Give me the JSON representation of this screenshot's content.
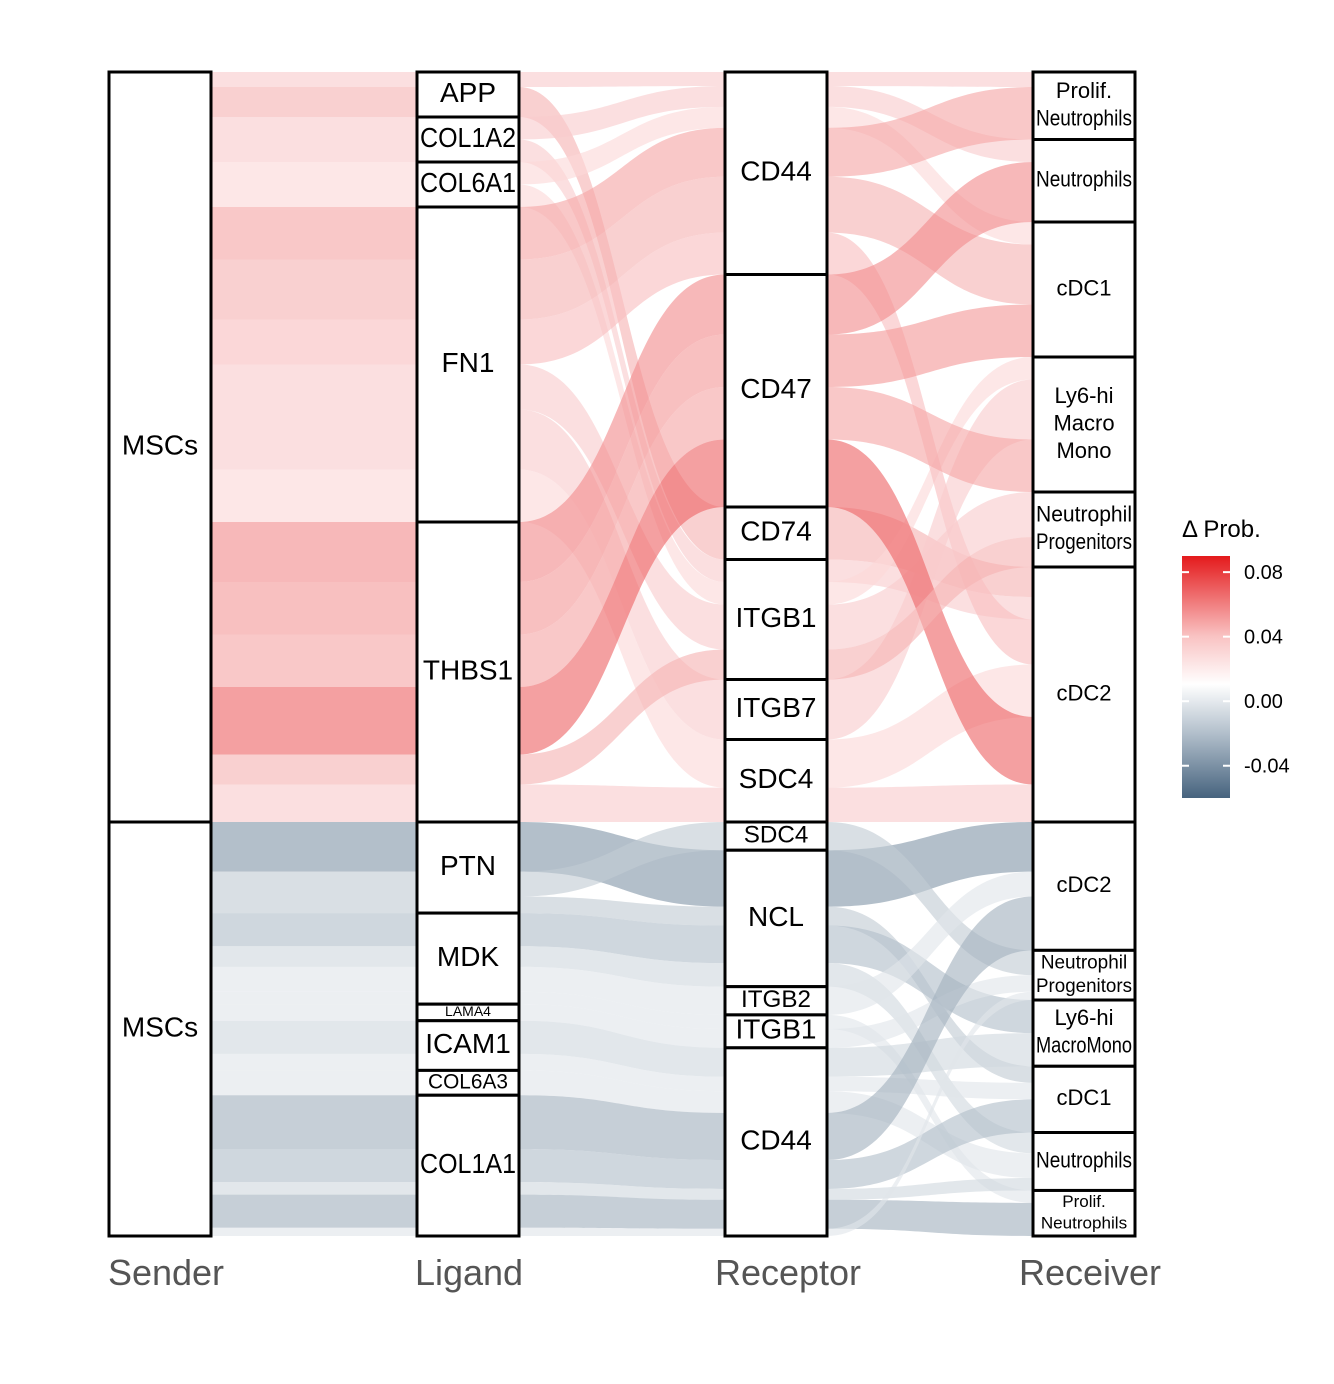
{
  "chart_data": {
    "type": "alluvial",
    "axes": [
      "Sender",
      "Ligand",
      "Receptor",
      "Receiver"
    ],
    "legend": {
      "title": "Δ Prob.",
      "ticks": [
        "0.08",
        "0.04",
        "0.00",
        "-0.04"
      ],
      "tick_values": [
        0.08,
        0.04,
        0.0,
        -0.04
      ],
      "range": [
        -0.06,
        0.09
      ],
      "colors": {
        "high": "#e41a1c",
        "mid": "#ffffff",
        "low": "#46637e"
      }
    },
    "groups": [
      {
        "id": "up",
        "sign": "positive",
        "sender": [
          {
            "label": "MSCs",
            "value": 100
          }
        ],
        "ligand": [
          {
            "label": "APP",
            "value": 6
          },
          {
            "label": "COL1A2",
            "value": 6
          },
          {
            "label": "COL6A1",
            "value": 6
          },
          {
            "label": "FN1",
            "value": 42
          },
          {
            "label": "THBS1",
            "value": 40
          }
        ],
        "receptor": [
          {
            "label": "CD44",
            "value": 27
          },
          {
            "label": "CD47",
            "value": 31
          },
          {
            "label": "CD74",
            "value": 7
          },
          {
            "label": "ITGB1",
            "value": 16
          },
          {
            "label": "ITGB7",
            "value": 8
          },
          {
            "label": "SDC4",
            "value": 11
          }
        ],
        "receiver": [
          {
            "label": "Prolif.\nNeutrophils",
            "value": 9
          },
          {
            "label": "Neutrophils",
            "value": 11
          },
          {
            "label": "cDC1",
            "value": 18
          },
          {
            "label": "Ly6-hi\nMacro\nMono",
            "value": 18
          },
          {
            "label": "Neutrophil\nProgenitors",
            "value": 10
          },
          {
            "label": "cDC2",
            "value": 34
          }
        ]
      },
      {
        "id": "down",
        "sign": "negative",
        "sender": [
          {
            "label": "MSCs",
            "value": 100
          }
        ],
        "ligand": [
          {
            "label": "PTN",
            "value": 22
          },
          {
            "label": "MDK",
            "value": 22
          },
          {
            "label": "LAMA4",
            "value": 4
          },
          {
            "label": "ICAM1",
            "value": 12
          },
          {
            "label": "COL6A3",
            "value": 6
          },
          {
            "label": "COL1A1",
            "value": 34
          }
        ],
        "receptor": [
          {
            "label": "SDC4",
            "value": 6
          },
          {
            "label": "NCL",
            "value": 29
          },
          {
            "label": "ITGB2",
            "value": 6
          },
          {
            "label": "ITGB1",
            "value": 7
          },
          {
            "label": "CD44",
            "value": 40
          }
        ],
        "receiver": [
          {
            "label": "cDC2",
            "value": 31
          },
          {
            "label": "Neutrophil\nProgenitors",
            "value": 12
          },
          {
            "label": "Ly6-hi\nMacroMono",
            "value": 16
          },
          {
            "label": "cDC1",
            "value": 16
          },
          {
            "label": "Neutrophils",
            "value": 14
          },
          {
            "label": "Prolif.\nNeutrophils",
            "value": 11
          }
        ]
      }
    ],
    "flows": [
      {
        "group": "up",
        "ligand": "APP",
        "receptor": "CD44",
        "receiver": "Prolif.\nNeutrophils",
        "value": 2,
        "delta": 0.02
      },
      {
        "group": "up",
        "ligand": "APP",
        "receptor": "CD74",
        "receiver": "cDC2",
        "value": 4,
        "delta": 0.03
      },
      {
        "group": "up",
        "ligand": "COL1A2",
        "receptor": "CD44",
        "receiver": "Neutrophils",
        "value": 3,
        "delta": 0.02
      },
      {
        "group": "up",
        "ligand": "COL1A2",
        "receptor": "ITGB1",
        "receiver": "cDC2",
        "value": 3,
        "delta": 0.02
      },
      {
        "group": "up",
        "ligand": "COL6A1",
        "receptor": "CD44",
        "receiver": "cDC1",
        "value": 3,
        "delta": 0.015
      },
      {
        "group": "up",
        "ligand": "COL6A1",
        "receptor": "ITGB1",
        "receiver": "Ly6-hi\nMacro\nMono",
        "value": 3,
        "delta": 0.015
      },
      {
        "group": "up",
        "ligand": "FN1",
        "receptor": "CD44",
        "receiver": "Prolif.\nNeutrophils",
        "value": 7,
        "delta": 0.035
      },
      {
        "group": "up",
        "ligand": "FN1",
        "receptor": "CD44",
        "receiver": "cDC1",
        "value": 8,
        "delta": 0.03
      },
      {
        "group": "up",
        "ligand": "FN1",
        "receptor": "CD44",
        "receiver": "cDC2",
        "value": 6,
        "delta": 0.025
      },
      {
        "group": "up",
        "ligand": "FN1",
        "receptor": "ITGB1",
        "receiver": "Neutrophil\nProgenitors",
        "value": 6,
        "delta": 0.02
      },
      {
        "group": "up",
        "ligand": "FN1",
        "receptor": "ITGB7",
        "receiver": "Ly6-hi\nMacro\nMono",
        "value": 8,
        "delta": 0.02
      },
      {
        "group": "up",
        "ligand": "FN1",
        "receptor": "SDC4",
        "receiver": "cDC2",
        "value": 7,
        "delta": 0.015
      },
      {
        "group": "up",
        "ligand": "THBS1",
        "receptor": "CD47",
        "receiver": "Neutrophils",
        "value": 8,
        "delta": 0.045
      },
      {
        "group": "up",
        "ligand": "THBS1",
        "receptor": "CD47",
        "receiver": "cDC1",
        "value": 7,
        "delta": 0.04
      },
      {
        "group": "up",
        "ligand": "THBS1",
        "receptor": "CD47",
        "receiver": "Ly6-hi\nMacro\nMono",
        "value": 7,
        "delta": 0.035
      },
      {
        "group": "up",
        "ligand": "THBS1",
        "receptor": "CD47",
        "receiver": "cDC2",
        "value": 9,
        "delta": 0.06
      },
      {
        "group": "up",
        "ligand": "THBS1",
        "receptor": "ITGB1",
        "receiver": "Neutrophil\nProgenitors",
        "value": 4,
        "delta": 0.03
      },
      {
        "group": "up",
        "ligand": "THBS1",
        "receptor": "SDC4",
        "receiver": "cDC2",
        "value": 5,
        "delta": 0.02
      },
      {
        "group": "down",
        "ligand": "PTN",
        "receptor": "NCL",
        "receiver": "cDC2",
        "value": 12,
        "delta": -0.04
      },
      {
        "group": "down",
        "ligand": "PTN",
        "receptor": "SDC4",
        "receiver": "Neutrophil\nProgenitors",
        "value": 6,
        "delta": -0.02
      },
      {
        "group": "down",
        "ligand": "PTN",
        "receptor": "NCL",
        "receiver": "cDC1",
        "value": 4,
        "delta": -0.02
      },
      {
        "group": "down",
        "ligand": "MDK",
        "receptor": "NCL",
        "receiver": "Ly6-hi\nMacroMono",
        "value": 8,
        "delta": -0.025
      },
      {
        "group": "down",
        "ligand": "MDK",
        "receptor": "NCL",
        "receiver": "Neutrophils",
        "value": 5,
        "delta": -0.015
      },
      {
        "group": "down",
        "ligand": "MDK",
        "receptor": "ITGB2",
        "receiver": "cDC2",
        "value": 6,
        "delta": -0.01
      },
      {
        "group": "down",
        "ligand": "MDK",
        "receptor": "ITGB1",
        "receiver": "Prolif.\nNeutrophils",
        "value": 3,
        "delta": -0.01
      },
      {
        "group": "down",
        "ligand": "LAMA4",
        "receptor": "ITGB1",
        "receiver": "Neutrophil\nProgenitors",
        "value": 4,
        "delta": -0.01
      },
      {
        "group": "down",
        "ligand": "ICAM1",
        "receptor": "CD44",
        "receiver": "Ly6-hi\nMacroMono",
        "value": 8,
        "delta": -0.015
      },
      {
        "group": "down",
        "ligand": "ICAM1",
        "receptor": "CD44",
        "receiver": "cDC1",
        "value": 4,
        "delta": -0.01
      },
      {
        "group": "down",
        "ligand": "COL6A3",
        "receptor": "CD44",
        "receiver": "Neutrophils",
        "value": 6,
        "delta": -0.01
      },
      {
        "group": "down",
        "ligand": "COL1A1",
        "receptor": "CD44",
        "receiver": "cDC2",
        "value": 13,
        "delta": -0.03
      },
      {
        "group": "down",
        "ligand": "COL1A1",
        "receptor": "CD44",
        "receiver": "cDC1",
        "value": 8,
        "delta": -0.025
      },
      {
        "group": "down",
        "ligand": "COL1A1",
        "receptor": "CD44",
        "receiver": "Neutrophils",
        "value": 3,
        "delta": -0.015
      },
      {
        "group": "down",
        "ligand": "COL1A1",
        "receptor": "CD44",
        "receiver": "Prolif.\nNeutrophils",
        "value": 8,
        "delta": -0.03
      },
      {
        "group": "down",
        "ligand": "COL1A1",
        "receptor": "CD44",
        "receiver": "Neutrophil\nProgenitors",
        "value": 2,
        "delta": -0.01
      }
    ]
  }
}
